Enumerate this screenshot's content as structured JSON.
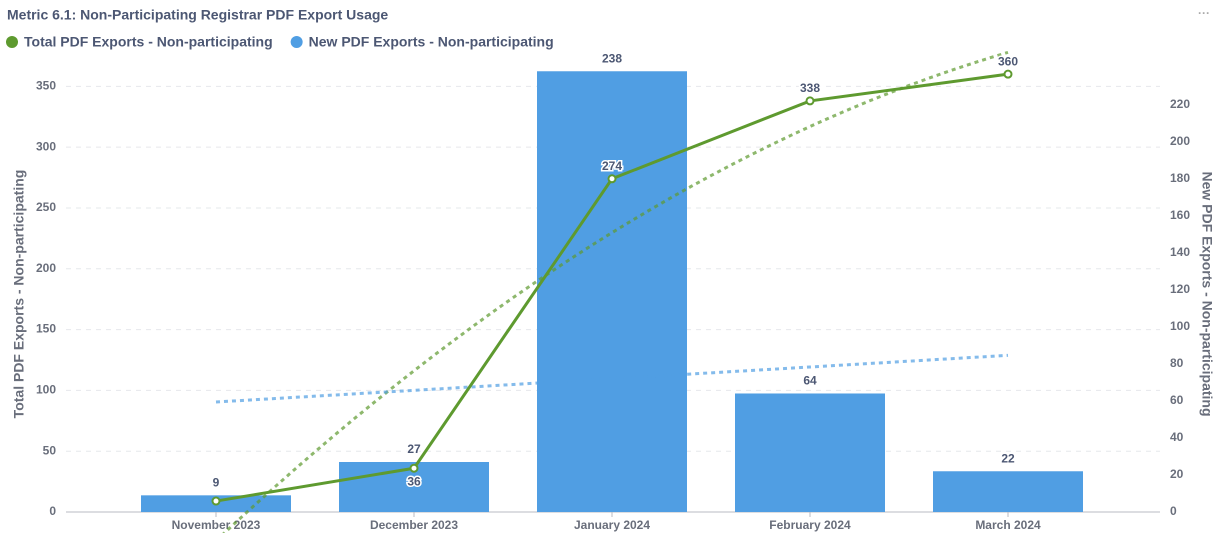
{
  "chart_data": {
    "type": "bar-line",
    "title": "Metric 6.1: Non-Participating Registrar PDF Export Usage",
    "categories": [
      "November 2023",
      "December 2023",
      "January 2024",
      "February 2024",
      "March 2024"
    ],
    "series": [
      {
        "name": "Total PDF Exports - Non-participating",
        "type": "line",
        "color": "#5e9a2f",
        "values": [
          9,
          36,
          274,
          338,
          360
        ],
        "axis": "y"
      },
      {
        "name": "New PDF Exports - Non-participating",
        "type": "bar",
        "color": "#509ee3",
        "values": [
          9,
          27,
          238,
          64,
          22
        ],
        "axis": "y2"
      }
    ],
    "ylabel": "Total PDF Exports - Non-participating",
    "y2label": "New PDF Exports - Non-participating",
    "ylim": [
      0,
      370
    ],
    "yticks": [
      0,
      50,
      100,
      150,
      200,
      250,
      300,
      350
    ],
    "y2lim": [
      0,
      243
    ],
    "y2ticks": [
      0,
      20,
      40,
      60,
      80,
      100,
      120,
      140,
      160,
      180,
      200,
      220
    ],
    "grid": true,
    "trendlines": true,
    "legend": "top-left"
  }
}
